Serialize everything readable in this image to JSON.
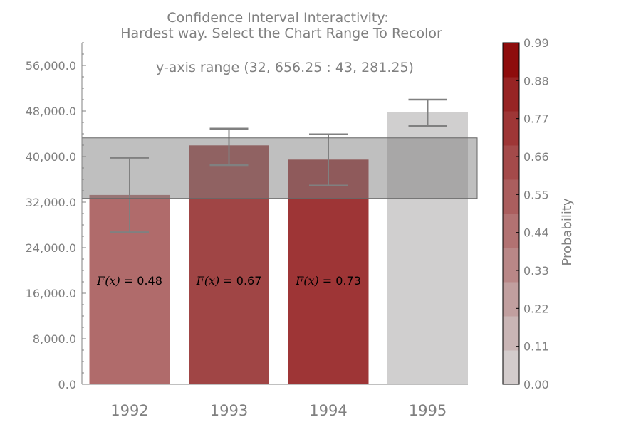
{
  "chart_data": {
    "type": "bar",
    "title_line1": "Confidence Interval Interactivity:",
    "title_line2": "Hardest way. Select the Chart Range To Recolor",
    "subtitle": "y-axis range (32, 656.25 : 43, 281.25)",
    "categories": [
      "1992",
      "1993",
      "1994",
      "1995"
    ],
    "values": [
      33200,
      41900,
      39400,
      47800
    ],
    "error_low": [
      26700,
      38500,
      34900,
      45400
    ],
    "error_high": [
      39800,
      44900,
      43900,
      50000
    ],
    "prob_labels": [
      "F(x) = 0.48",
      "F(x) = 0.67",
      "F(x) = 0.73",
      ""
    ],
    "probabilities": [
      0.48,
      0.67,
      0.73,
      0.0
    ],
    "bar_colors": [
      "#b06b6b",
      "#a04545",
      "#9e3536",
      "#d0cfcf"
    ],
    "selected_range": [
      32656.25,
      43281.25
    ],
    "ylim": [
      0,
      60000
    ],
    "yticks": [
      0,
      8000,
      16000,
      24000,
      32000,
      40000,
      48000,
      56000
    ],
    "ytick_labels": [
      "0.0",
      "8,000.0",
      "16,000.0",
      "24,000.0",
      "32,000.0",
      "40,000.0",
      "48,000.0",
      "56,000.0"
    ],
    "colorbar": {
      "label": "Probability",
      "ticks": [
        "0.00",
        "0.11",
        "0.22",
        "0.33",
        "0.44",
        "0.55",
        "0.66",
        "0.77",
        "0.88",
        "0.99"
      ],
      "colors": [
        "#d3cccc",
        "#c9b5b5",
        "#c19f9f",
        "#b98787",
        "#b27272",
        "#ab5e5e",
        "#a44a4a",
        "#9e3636",
        "#972424",
        "#8e0c0c"
      ]
    }
  }
}
